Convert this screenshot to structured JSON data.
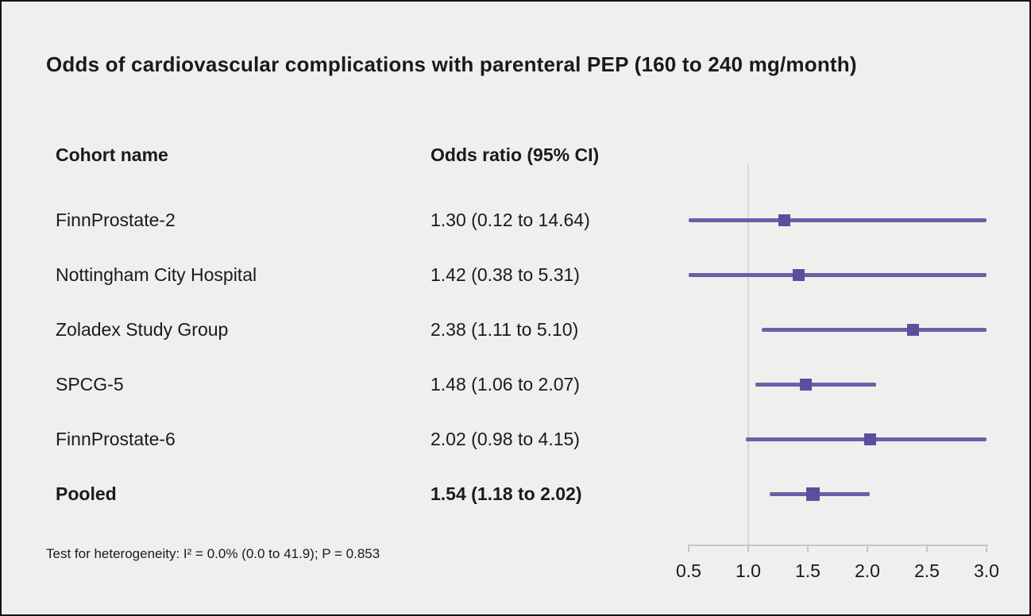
{
  "chart_data": {
    "type": "scatter",
    "subtype": "forest-plot",
    "title": "Odds of cardiovascular complications with parenteral PEP (160 to 240 mg/month)",
    "columns": {
      "cohort": "Cohort name",
      "odds_ratio": "Odds ratio (95% CI)"
    },
    "rows": [
      {
        "name": "FinnProstate-2",
        "estimate_label": "1.30 (0.12 to 14.64)",
        "or": 1.3,
        "ci_low": 0.12,
        "ci_high": 14.64,
        "bold": false
      },
      {
        "name": "Nottingham City Hospital",
        "estimate_label": "1.42 (0.38 to 5.31)",
        "or": 1.42,
        "ci_low": 0.38,
        "ci_high": 5.31,
        "bold": false
      },
      {
        "name": "Zoladex Study Group",
        "estimate_label": "2.38 (1.11 to 5.10)",
        "or": 2.38,
        "ci_low": 1.11,
        "ci_high": 5.1,
        "bold": false
      },
      {
        "name": "SPCG-5",
        "estimate_label": "1.48 (1.06 to 2.07)",
        "or": 1.48,
        "ci_low": 1.06,
        "ci_high": 2.07,
        "bold": false
      },
      {
        "name": "FinnProstate-6",
        "estimate_label": "2.02 (0.98 to 4.15)",
        "or": 2.02,
        "ci_low": 0.98,
        "ci_high": 4.15,
        "bold": false
      },
      {
        "name": "Pooled",
        "estimate_label": "1.54 (1.18 to 2.02)",
        "or": 1.54,
        "ci_low": 1.18,
        "ci_high": 2.02,
        "bold": true
      }
    ],
    "axis": {
      "min": 0.5,
      "max": 3.0,
      "reference_line": 1.0,
      "scale": "linear",
      "grid": false,
      "ticks": [
        0.5,
        1.0,
        1.5,
        2.0,
        2.5,
        3.0
      ],
      "tick_labels": [
        "0.5",
        "1.0",
        "1.5",
        "2.0",
        "2.5",
        "3.0"
      ]
    },
    "footnote": "Test for heterogeneity: I² = 0.0% (0.0 to 41.9); P = 0.853",
    "colors": {
      "ci_line": "#6c5fa7",
      "marker": "#5a4f9e",
      "reference_line": "#d8d5da",
      "axis_line": "#c9c6c2",
      "text": "#1a1a1a",
      "background": "#f1efee"
    }
  }
}
